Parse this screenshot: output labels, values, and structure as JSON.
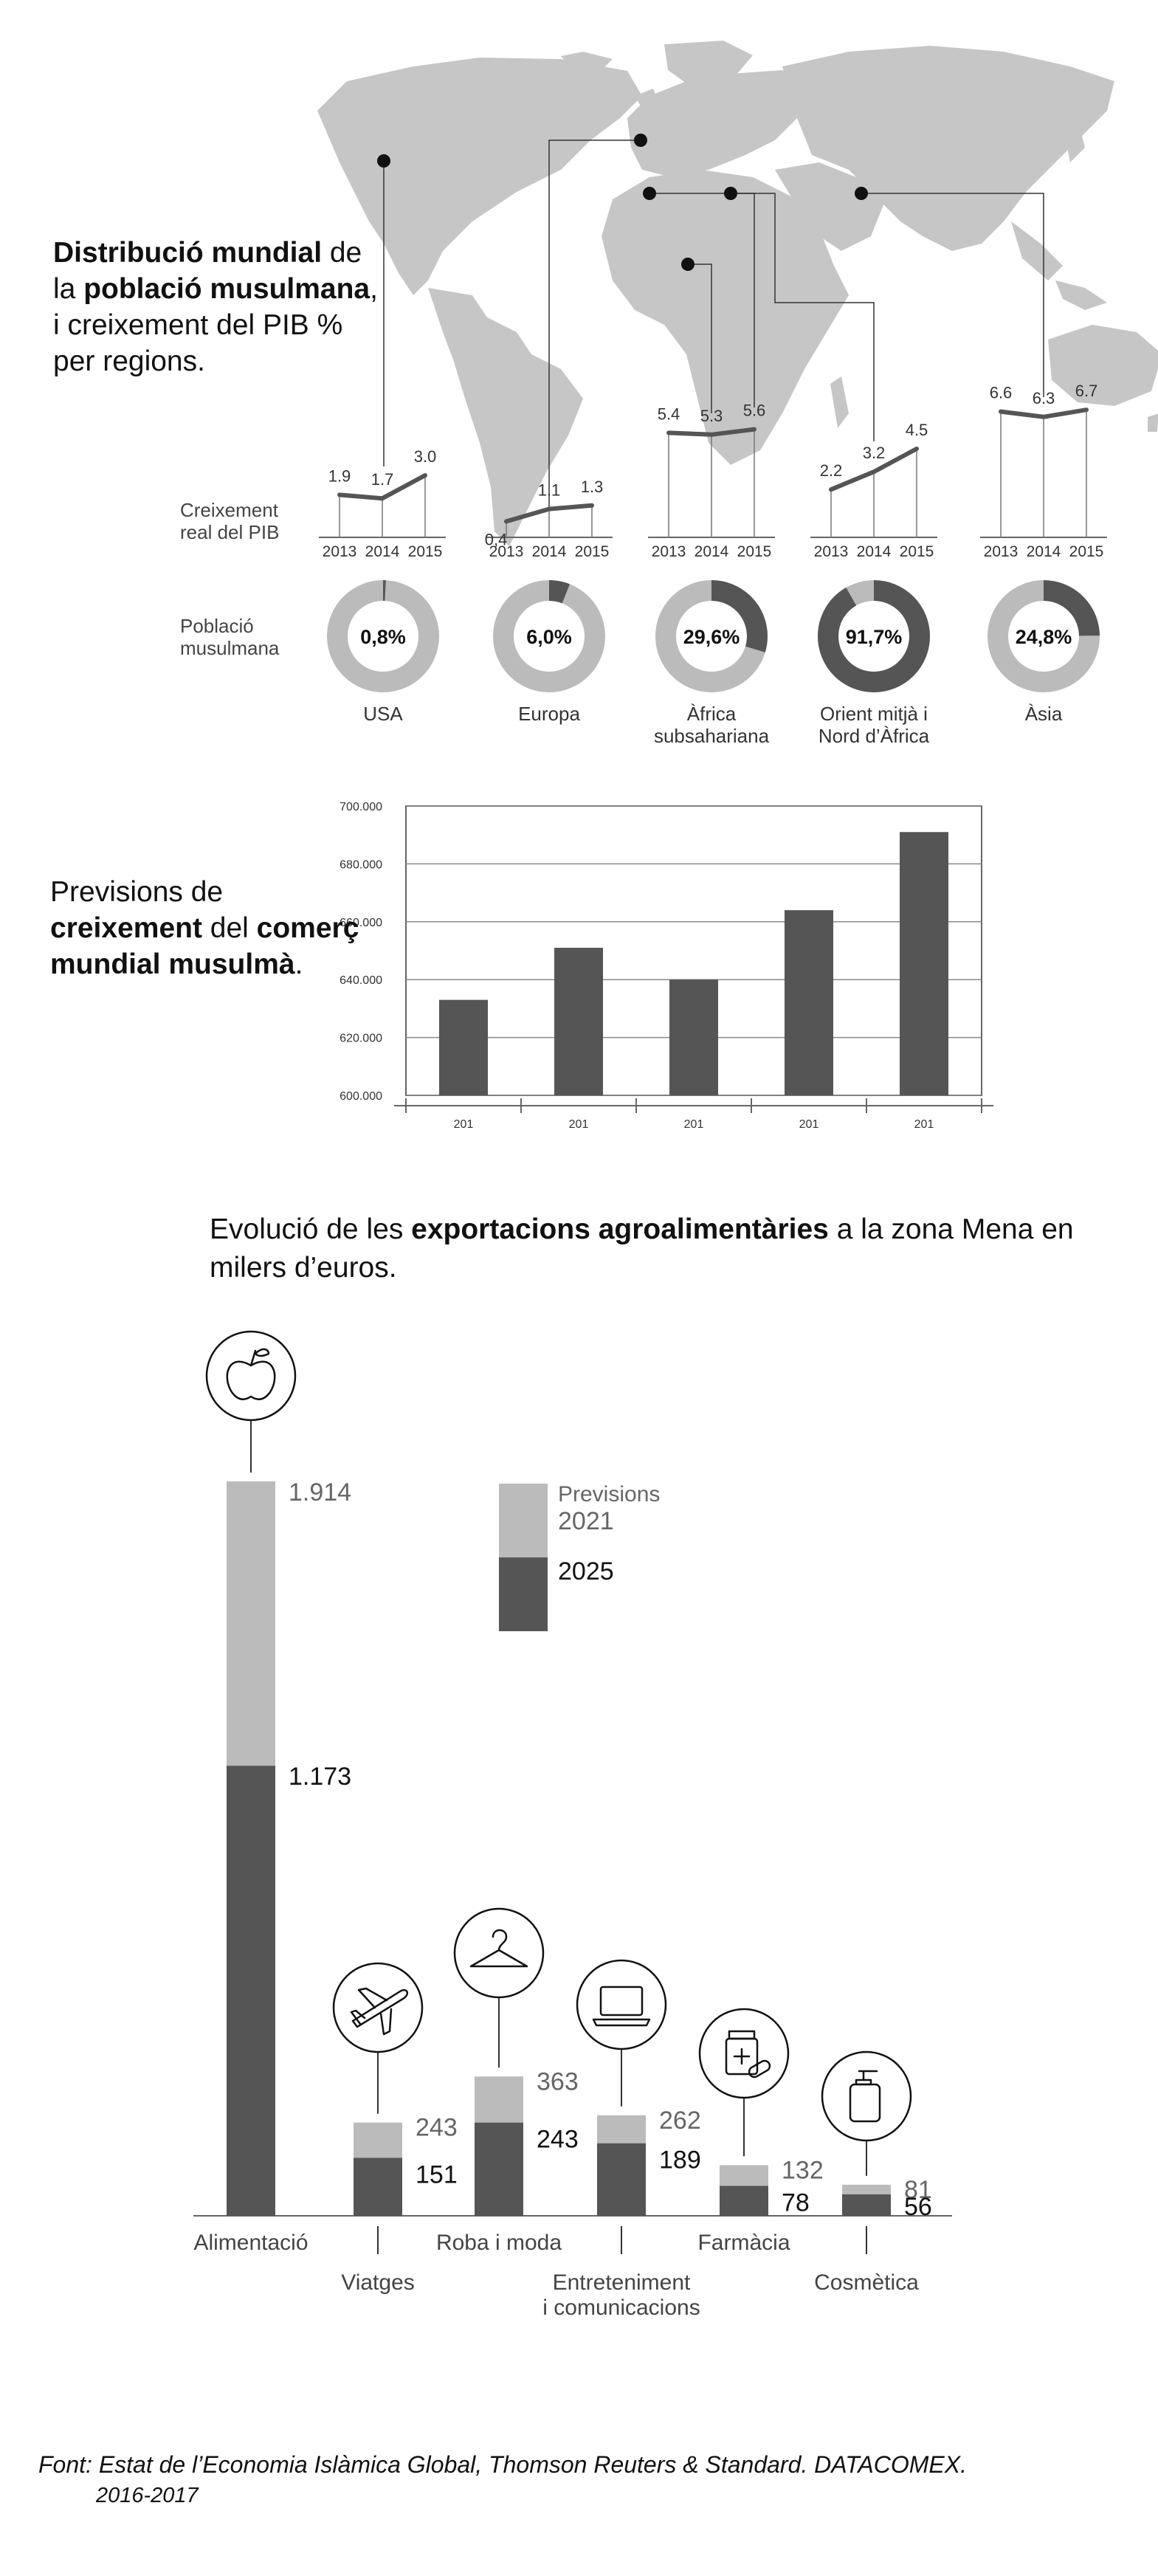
{
  "section1": {
    "title_parts": [
      {
        "text": "Distribució mundial",
        "bold": true
      },
      {
        "text": " de la ",
        "bold": false
      },
      {
        "text": "població musulmana",
        "bold": true
      },
      {
        "text": ", i creixement del PIB % per regions.",
        "bold": false
      }
    ],
    "gdp_row_label": [
      "Creixement",
      "real del PIB"
    ],
    "pop_row_label": [
      "Població",
      "musulmana"
    ]
  },
  "section2": {
    "title_parts": [
      {
        "text": "Previsions de ",
        "bold": false
      },
      {
        "text": "creixement",
        "bold": true
      },
      {
        "text": " del ",
        "bold": false
      },
      {
        "text": "comerç mundial musulmà",
        "bold": true
      },
      {
        "text": ".",
        "bold": false
      }
    ]
  },
  "section3": {
    "title_parts": [
      {
        "text": "Evolució de les ",
        "bold": false
      },
      {
        "text": "exportacions agroalimentàries",
        "bold": true
      },
      {
        "text": " a la zona Mena en milers d’euros.",
        "bold": false
      }
    ]
  },
  "footer": {
    "line1": "Font: Estat de l’Economia Islàmica Global, Thomson Reuters & Standard. DATACOMEX.",
    "line2": "2016-2017"
  },
  "colors": {
    "dark": "#555555",
    "light": "#bbbbbb",
    "map": "#c6c6c6",
    "axis": "#666666"
  },
  "chart_data": [
    {
      "type": "line",
      "x": [
        "2013",
        "2014",
        "2015"
      ],
      "regions": [
        {
          "name": "USA",
          "gdp": [
            1.9,
            1.7,
            3.0
          ],
          "gdp_labels": [
            "1.9",
            "1.7",
            "3.0"
          ],
          "muslim_pct": 0.8,
          "pct_label": "0,8%",
          "icon": "north-america-pin"
        },
        {
          "name": "Europa",
          "gdp": [
            0.4,
            1.1,
            1.3
          ],
          "gdp_labels": [
            "0,4",
            "1.1",
            "1.3"
          ],
          "muslim_pct": 6.0,
          "pct_label": "6,0%",
          "icon": "europe-pin"
        },
        {
          "name": "Àfrica subsahariana",
          "gdp": [
            5.4,
            5.3,
            5.6
          ],
          "gdp_labels": [
            "5.4",
            "5.3",
            "5.6"
          ],
          "muslim_pct": 29.6,
          "pct_label": "29,6%",
          "icon": "africa-pin"
        },
        {
          "name": "Orient mitjà i Nord d’Àfrica",
          "gdp": [
            2.2,
            3.2,
            4.5
          ],
          "gdp_labels": [
            "2.2",
            "3.2",
            "4.5"
          ],
          "muslim_pct": 91.7,
          "pct_label": "91,7%",
          "icon": "mena-pin"
        },
        {
          "name": "Àsia",
          "gdp": [
            6.6,
            6.3,
            6.7
          ],
          "gdp_labels": [
            "6.6",
            "6.3",
            "6.7"
          ],
          "muslim_pct": 24.8,
          "pct_label": "24,8%",
          "icon": "asia-pin"
        }
      ]
    },
    {
      "type": "bar",
      "categories": [
        "201",
        "201",
        "201",
        "201",
        "201"
      ],
      "values": [
        633000,
        651000,
        640000,
        664000,
        691000
      ],
      "yticks": [
        "600.000",
        "620.000",
        "640.000",
        "660.000",
        "680.000",
        "700.000"
      ],
      "ylim": [
        600000,
        700000
      ],
      "grid": true
    },
    {
      "type": "bar",
      "stacked": true,
      "legend": {
        "title": "Previsions",
        "series": [
          "2021",
          "2025"
        ],
        "position": "top-center"
      },
      "categories": [
        {
          "name": [
            "Alimentació"
          ],
          "v2021": 1173,
          "v2025": 1914,
          "label2021": "1.173",
          "label2025": "1.914",
          "icon": "apple-icon"
        },
        {
          "name": [
            "Viatges"
          ],
          "v2021": 151,
          "v2025": 243,
          "label2021": "151",
          "label2025": "243",
          "icon": "airplane-icon"
        },
        {
          "name": [
            "Roba i moda"
          ],
          "v2021": 243,
          "v2025": 363,
          "label2021": "243",
          "label2025": "363",
          "icon": "hanger-icon"
        },
        {
          "name": [
            "Entreteniment",
            "i comunicacions"
          ],
          "v2021": 189,
          "v2025": 262,
          "label2021": "189",
          "label2025": "262",
          "icon": "laptop-icon"
        },
        {
          "name": [
            "Farmàcia"
          ],
          "v2021": 78,
          "v2025": 132,
          "label2021": "78",
          "label2025": "132",
          "icon": "medicine-icon"
        },
        {
          "name": [
            "Cosmètica"
          ],
          "v2021": 56,
          "v2025": 81,
          "label2021": "56",
          "label2025": "81",
          "icon": "dispenser-icon"
        }
      ]
    }
  ]
}
